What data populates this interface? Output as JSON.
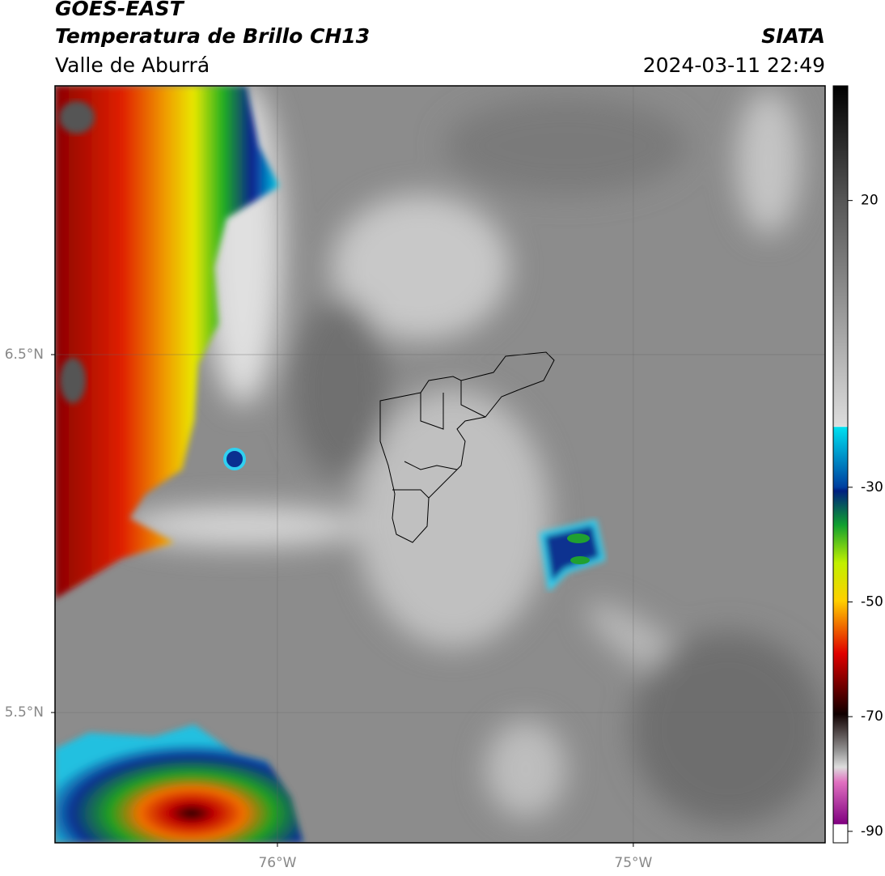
{
  "header": {
    "title": "GOES-EAST",
    "subtitle": "Temperatura de Brillo CH13",
    "region": "Valle de Aburrá",
    "source": "SIATA",
    "datetime": "2024-03-11 22:49"
  },
  "map": {
    "xlim": [
      -76.625,
      -74.461
    ],
    "ylim": [
      5.136,
      7.251
    ],
    "xticks": [
      {
        "value": -76,
        "label": "76°W"
      },
      {
        "value": -75,
        "label": "75°W"
      }
    ],
    "yticks": [
      {
        "value": 6.5,
        "label": "6.5°N"
      },
      {
        "value": 5.5,
        "label": "5.5°N"
      }
    ],
    "grid": true
  },
  "colorbar": {
    "lim": [
      -92,
      40
    ],
    "ticks": [
      20,
      -30,
      -50,
      -70,
      -90
    ]
  }
}
